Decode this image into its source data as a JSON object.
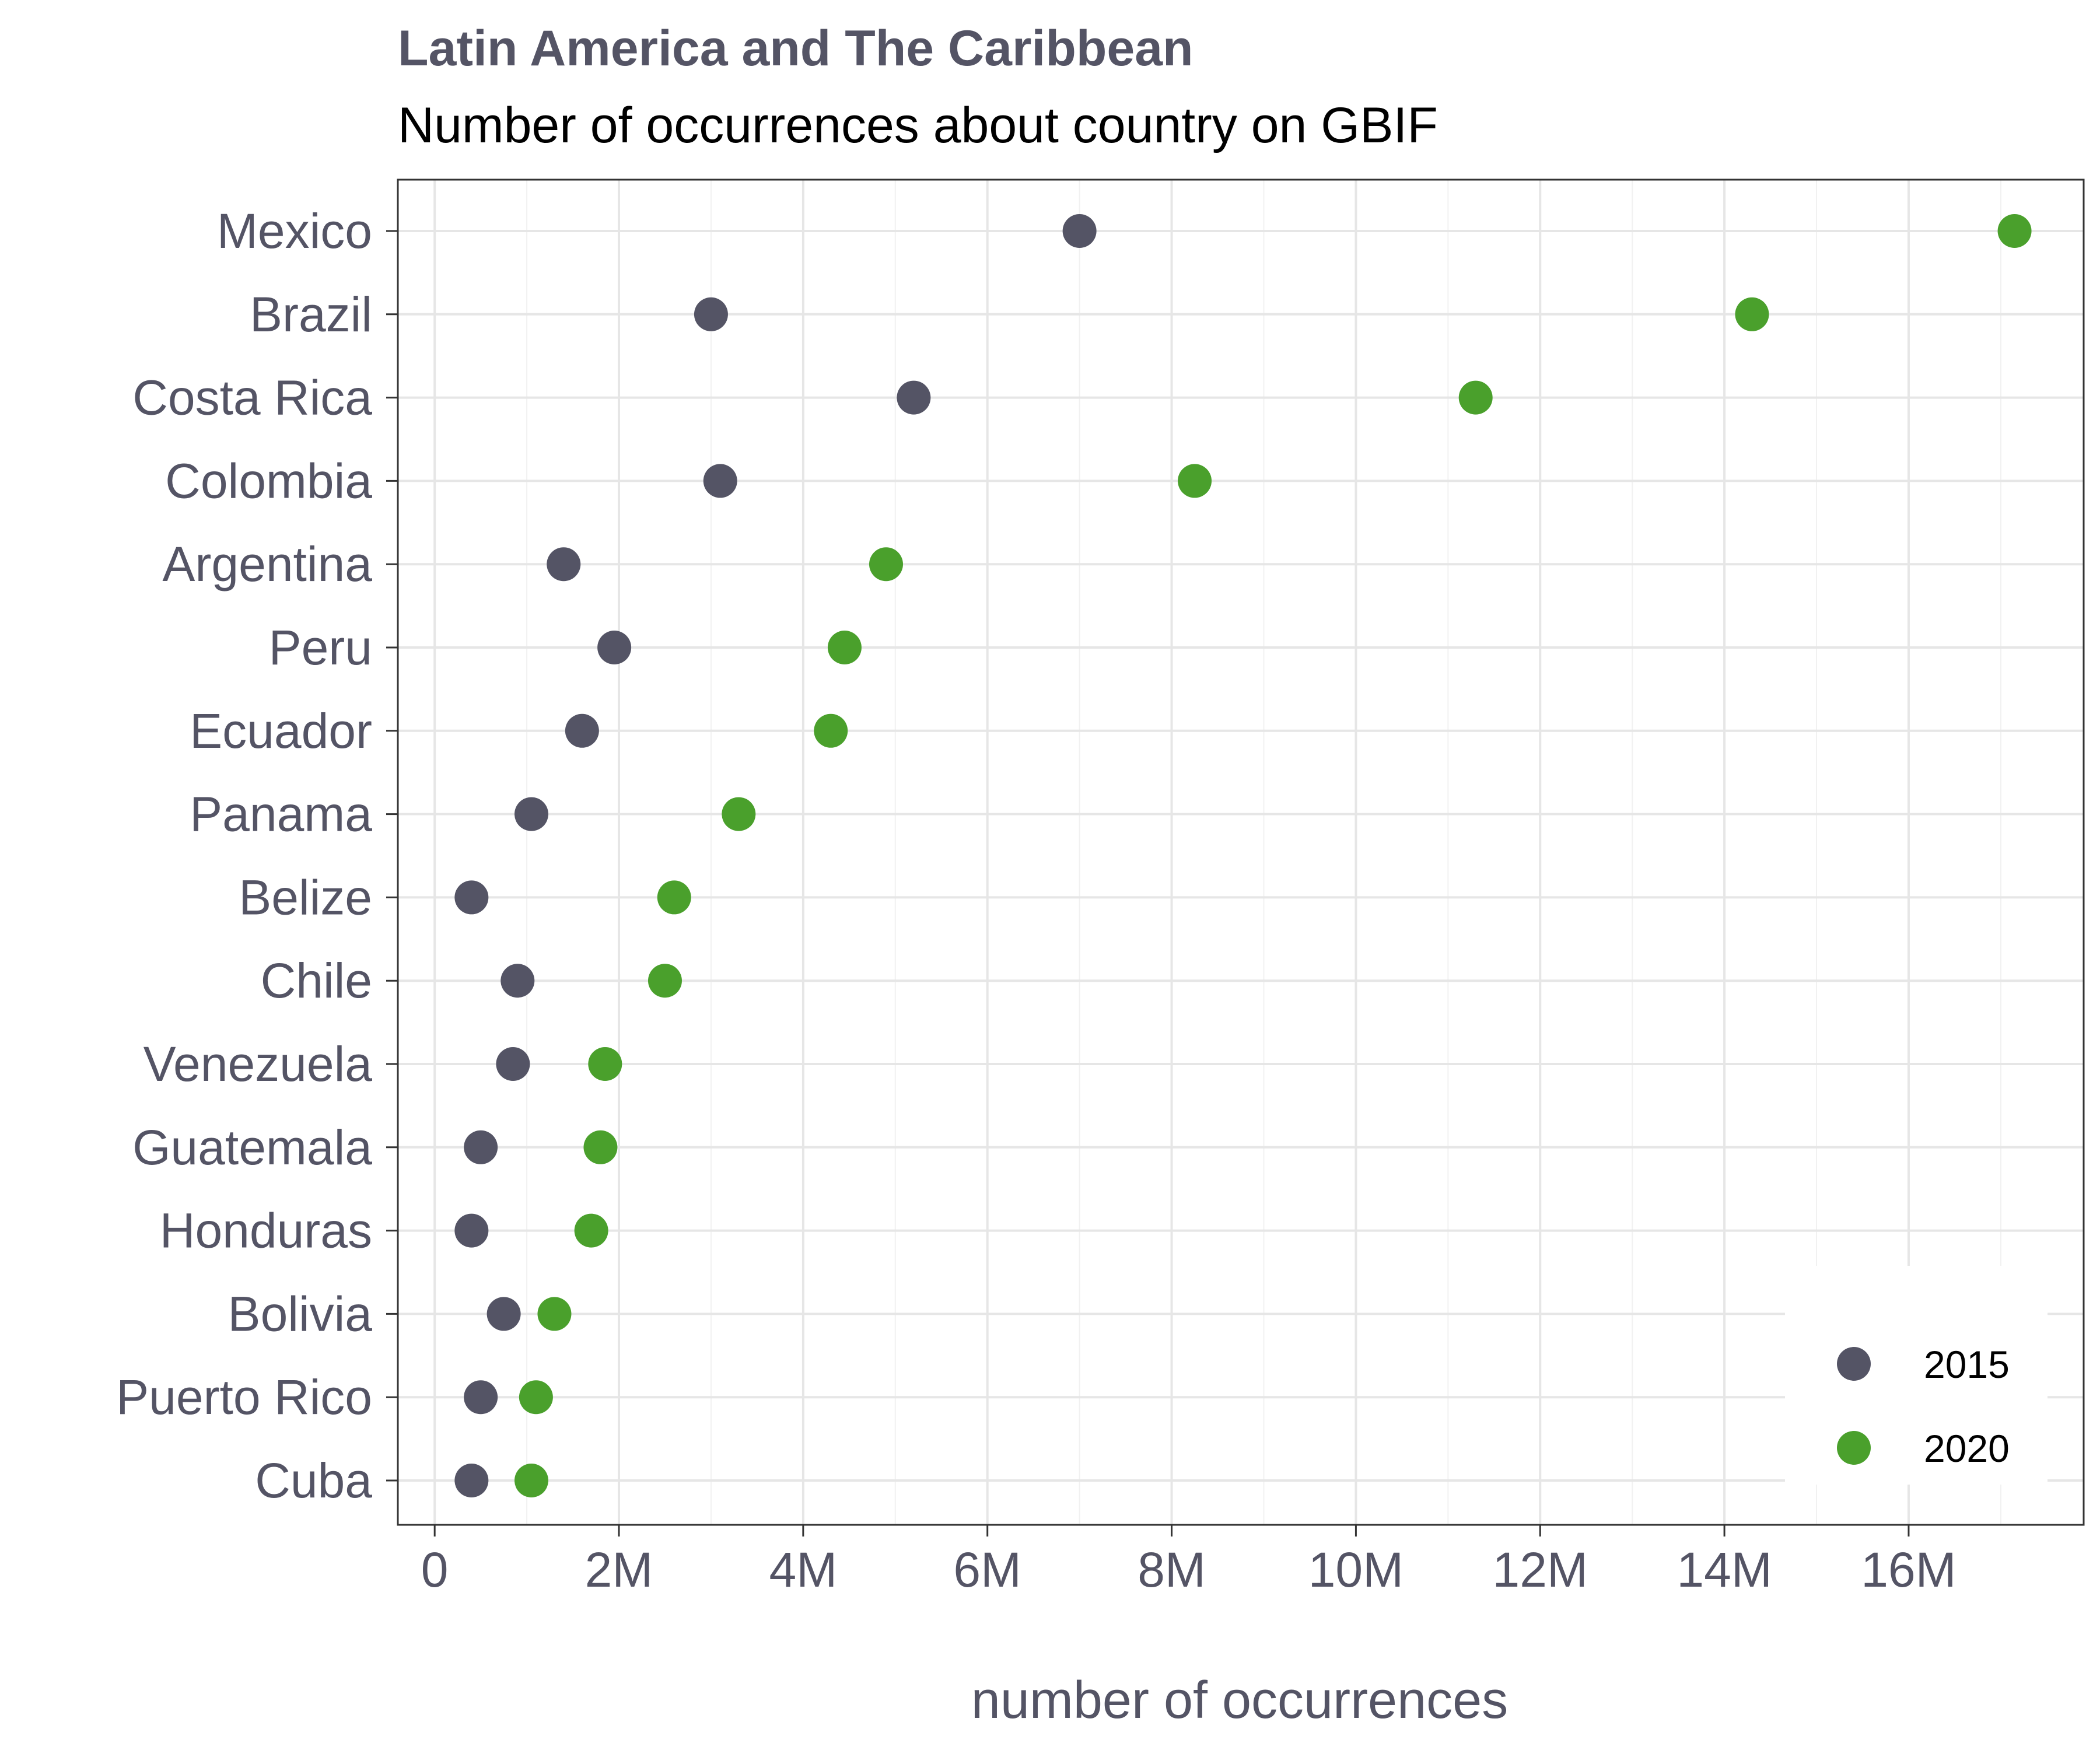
{
  "chart_data": {
    "type": "scatter",
    "title": "Latin America and The Caribbean",
    "subtitle": "Number of occurrences about country on GBIF",
    "xlabel": "number of occurrences",
    "ylabel": "",
    "xlim": [
      -0.4,
      17.9
    ],
    "x_unit": "millions",
    "x_ticks": [
      0,
      2,
      4,
      6,
      8,
      10,
      12,
      14,
      16
    ],
    "x_tick_labels": [
      "0",
      "2M",
      "4M",
      "6M",
      "8M",
      "10M",
      "12M",
      "14M",
      "16M"
    ],
    "categories": [
      "Mexico",
      "Brazil",
      "Costa Rica",
      "Colombia",
      "Argentina",
      "Peru",
      "Ecuador",
      "Panama",
      "Belize",
      "Chile",
      "Venezuela",
      "Guatemala",
      "Honduras",
      "Bolivia",
      "Puerto Rico",
      "Cuba"
    ],
    "series": [
      {
        "name": "2015",
        "color": "#545465",
        "values": [
          7.0,
          3.0,
          5.2,
          3.1,
          1.4,
          1.95,
          1.6,
          1.05,
          0.4,
          0.9,
          0.85,
          0.5,
          0.4,
          0.75,
          0.5,
          0.4
        ]
      },
      {
        "name": "2020",
        "color": "#4aa02c",
        "values": [
          17.15,
          14.3,
          11.3,
          8.25,
          4.9,
          4.45,
          4.3,
          3.3,
          2.6,
          2.5,
          1.85,
          1.8,
          1.7,
          1.3,
          1.1,
          1.05
        ]
      }
    ],
    "legend_position": "bottom-right",
    "grid": true
  }
}
